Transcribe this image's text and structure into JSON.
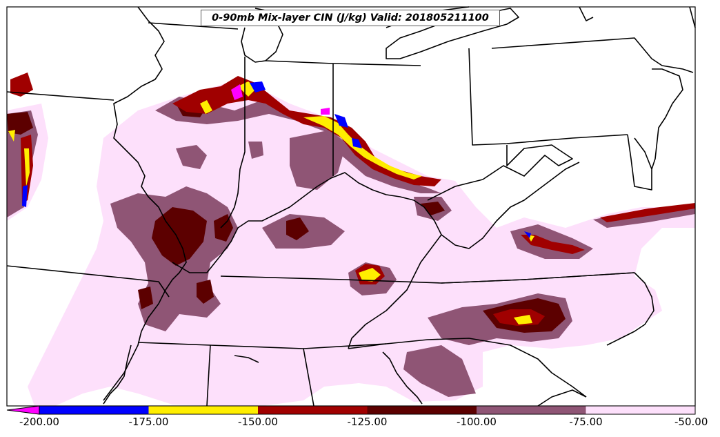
{
  "title": "0-90mb Mix-layer CIN (J/kg) Valid: 201805211100",
  "colorbar": {
    "ticks": [
      "-200.00",
      "-175.00",
      "-150.00",
      "-125.00",
      "-100.00",
      "-75.00",
      "-50.00"
    ],
    "bins": [
      {
        "min": -200,
        "max": -175,
        "color": "#0000ff"
      },
      {
        "min": -175,
        "max": -150,
        "color": "#ffee00"
      },
      {
        "min": -150,
        "max": -125,
        "color": "#a00000"
      },
      {
        "min": -125,
        "max": -100,
        "color": "#5c0000"
      },
      {
        "min": -100,
        "max": -75,
        "color": "#8f5575"
      },
      {
        "min": -75,
        "max": -50,
        "color": "#fde0fb"
      }
    ],
    "below_min_color": "#ff00ff"
  },
  "colors": {
    "blue": "#0000ff",
    "yellow": "#ffee00",
    "red": "#a00000",
    "dark_red": "#5c0000",
    "mauve": "#8f5575",
    "light_pink": "#fde0fb",
    "magenta": "#ff00ff",
    "boundary": "#000000"
  }
}
